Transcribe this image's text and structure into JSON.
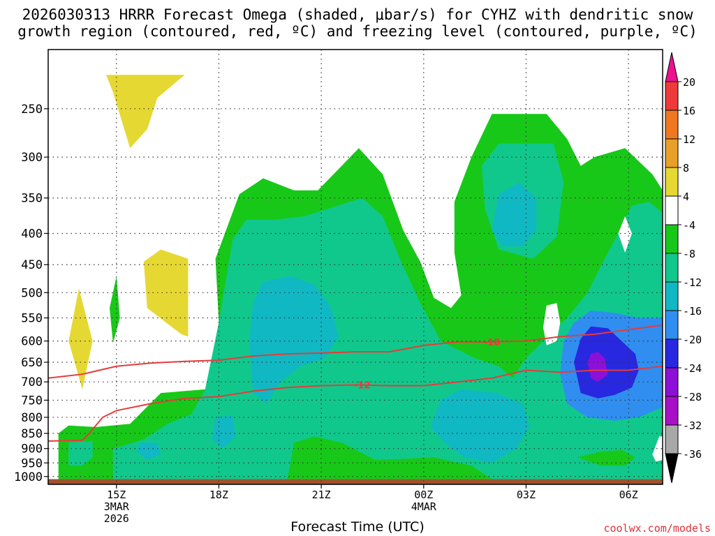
{
  "title_line1": "2026030313 HRRR Forecast Omega (shaded, μbar/s) for CYHZ with dendritic snow",
  "title_line2": "growth region (contoured, red, ºC) and freezing level (contoured, purple, ºC)",
  "credit": "coolwx.com/models",
  "chart_data": {
    "type": "heatmap",
    "xlabel": "Forecast Time (UTC)",
    "ylabel": "",
    "x_unit": "forecast hour from 2026-03-03 13Z",
    "xlim": [
      0,
      18
    ],
    "x_ticks": [
      {
        "x": 2,
        "label": "15Z",
        "sub1": "3MAR",
        "sub2": "2026"
      },
      {
        "x": 5,
        "label": "18Z",
        "sub1": "",
        "sub2": ""
      },
      {
        "x": 8,
        "label": "21Z",
        "sub1": "",
        "sub2": ""
      },
      {
        "x": 11,
        "label": "00Z",
        "sub1": "4MAR",
        "sub2": ""
      },
      {
        "x": 14,
        "label": "03Z",
        "sub1": "",
        "sub2": ""
      },
      {
        "x": 17,
        "label": "06Z",
        "sub1": "",
        "sub2": ""
      }
    ],
    "y_axis": "pressure (hPa), reversed, log scale",
    "ylim": [
      1030,
      200
    ],
    "y_ticks": [
      250,
      300,
      350,
      400,
      450,
      500,
      550,
      600,
      650,
      700,
      750,
      800,
      850,
      900,
      950,
      1000
    ],
    "grid": true,
    "colorbar": {
      "labels": [
        "20",
        "16",
        "12",
        "8",
        "4",
        "-4",
        "-8",
        "-12",
        "-16",
        "-20",
        "-24",
        "-28",
        "-32",
        "-36"
      ],
      "bands": [
        {
          "from": 20,
          "to": 24,
          "color": "#ee1090"
        },
        {
          "from": 16,
          "to": 20,
          "color": "#ee3a3a"
        },
        {
          "from": 12,
          "to": 16,
          "color": "#f07820"
        },
        {
          "from": 8,
          "to": 12,
          "color": "#e8a028"
        },
        {
          "from": 4,
          "to": 8,
          "color": "#e6d832"
        },
        {
          "from": -4,
          "to": 4,
          "color": "#ffffff"
        },
        {
          "from": -8,
          "to": -4,
          "color": "#18c818"
        },
        {
          "from": -12,
          "to": -8,
          "color": "#10c88c"
        },
        {
          "from": -16,
          "to": -12,
          "color": "#10b8c4"
        },
        {
          "from": -20,
          "to": -16,
          "color": "#2f8ef0"
        },
        {
          "from": -24,
          "to": -20,
          "color": "#2828e0"
        },
        {
          "from": -28,
          "to": -24,
          "color": "#8c10d8"
        },
        {
          "from": -32,
          "to": -28,
          "color": "#a810c8"
        },
        {
          "from": -36,
          "to": -32,
          "color": "#a8a8a8"
        },
        {
          "from": -40,
          "to": -36,
          "color": "#000000"
        }
      ]
    },
    "ground_color": "#a0522d",
    "contour_color": "#e83a3a",
    "shaded_regions": [
      {
        "name": "omega-pos-upper",
        "value": 6,
        "points": [
          [
            1.7,
            220
          ],
          [
            4.0,
            220
          ],
          [
            3.2,
            240
          ],
          [
            2.9,
            270
          ],
          [
            2.4,
            290
          ],
          [
            1.9,
            235
          ]
        ]
      },
      {
        "name": "omega-pos-mid",
        "value": 6,
        "points": [
          [
            2.8,
            445
          ],
          [
            3.3,
            425
          ],
          [
            4.1,
            440
          ],
          [
            4.1,
            590
          ],
          [
            3.9,
            585
          ],
          [
            2.9,
            530
          ]
        ]
      },
      {
        "name": "omega-pos-left",
        "value": 6,
        "points": [
          [
            0.6,
            600
          ],
          [
            0.9,
            492
          ],
          [
            1.3,
            600
          ],
          [
            1.0,
            720
          ]
        ]
      },
      {
        "name": "omega-neg-thin",
        "value": -6,
        "points": [
          [
            1.8,
            530
          ],
          [
            2.0,
            470
          ],
          [
            2.1,
            550
          ],
          [
            1.9,
            605
          ]
        ]
      },
      {
        "name": "omega-neg-main",
        "value": -6,
        "points": [
          [
            0.3,
            1010
          ],
          [
            0.3,
            850
          ],
          [
            0.6,
            825
          ],
          [
            1.4,
            830
          ],
          [
            2.4,
            820
          ],
          [
            3.3,
            730
          ],
          [
            4.6,
            720
          ],
          [
            5.0,
            560
          ],
          [
            4.9,
            440
          ],
          [
            5.6,
            345
          ],
          [
            6.3,
            325
          ],
          [
            7.2,
            340
          ],
          [
            7.9,
            340
          ],
          [
            8.6,
            310
          ],
          [
            9.1,
            290
          ],
          [
            9.8,
            320
          ],
          [
            10.4,
            395
          ],
          [
            10.9,
            445
          ],
          [
            11.3,
            510
          ],
          [
            11.8,
            530
          ],
          [
            12.1,
            505
          ],
          [
            11.9,
            430
          ],
          [
            11.9,
            355
          ],
          [
            12.4,
            300
          ],
          [
            13.0,
            255
          ],
          [
            14.6,
            255
          ],
          [
            15.2,
            280
          ],
          [
            15.6,
            310
          ],
          [
            16.0,
            300
          ],
          [
            16.9,
            290
          ],
          [
            17.7,
            320
          ],
          [
            18.0,
            340
          ],
          [
            18.0,
            1010
          ]
        ]
      },
      {
        "name": "omega-n12-main",
        "value": -10,
        "points": [
          [
            1.9,
            1010
          ],
          [
            1.9,
            900
          ],
          [
            2.8,
            870
          ],
          [
            3.5,
            820
          ],
          [
            4.2,
            790
          ],
          [
            4.6,
            720
          ],
          [
            5.0,
            560
          ],
          [
            5.4,
            410
          ],
          [
            5.8,
            380
          ],
          [
            6.6,
            380
          ],
          [
            7.5,
            375
          ],
          [
            8.5,
            360
          ],
          [
            9.2,
            350
          ],
          [
            9.8,
            375
          ],
          [
            10.3,
            440
          ],
          [
            10.9,
            520
          ],
          [
            11.5,
            600
          ],
          [
            12.5,
            640
          ],
          [
            13.2,
            660
          ],
          [
            13.6,
            690
          ],
          [
            14.0,
            640
          ],
          [
            14.7,
            585
          ],
          [
            15.2,
            550
          ],
          [
            15.8,
            500
          ],
          [
            16.3,
            440
          ],
          [
            16.8,
            390
          ],
          [
            17.1,
            360
          ],
          [
            17.6,
            355
          ],
          [
            18.0,
            370
          ],
          [
            18.0,
            1010
          ],
          [
            13.0,
            1010
          ],
          [
            12.4,
            960
          ],
          [
            11.3,
            930
          ],
          [
            9.6,
            940
          ],
          [
            8.6,
            880
          ],
          [
            7.8,
            860
          ],
          [
            7.2,
            880
          ],
          [
            7.1,
            950
          ],
          [
            7.0,
            1010
          ]
        ]
      },
      {
        "name": "omega-n12-left",
        "value": -10,
        "points": [
          [
            0.6,
            960
          ],
          [
            0.6,
            880
          ],
          [
            1.3,
            875
          ],
          [
            1.3,
            930
          ],
          [
            1.0,
            960
          ]
        ]
      },
      {
        "name": "omega-n12-upper",
        "value": -10,
        "points": [
          [
            12.8,
            365
          ],
          [
            12.7,
            310
          ],
          [
            13.2,
            285
          ],
          [
            14.8,
            285
          ],
          [
            15.1,
            330
          ],
          [
            14.9,
            405
          ],
          [
            14.2,
            440
          ],
          [
            13.2,
            425
          ]
        ]
      },
      {
        "name": "omega-n16-mid",
        "value": -14,
        "points": [
          [
            6.0,
            520
          ],
          [
            6.3,
            480
          ],
          [
            7.1,
            470
          ],
          [
            7.8,
            485
          ],
          [
            8.3,
            530
          ],
          [
            8.5,
            590
          ],
          [
            8.1,
            640
          ],
          [
            7.4,
            660
          ],
          [
            6.8,
            700
          ],
          [
            6.4,
            760
          ],
          [
            6.0,
            730
          ],
          [
            5.9,
            600
          ]
        ]
      },
      {
        "name": "omega-n16-upper",
        "value": -14,
        "points": [
          [
            13.0,
            395
          ],
          [
            13.2,
            345
          ],
          [
            13.8,
            330
          ],
          [
            14.3,
            350
          ],
          [
            14.3,
            395
          ],
          [
            13.9,
            420
          ],
          [
            13.3,
            420
          ]
        ]
      },
      {
        "name": "omega-n16-lower",
        "value": -14,
        "points": [
          [
            11.2,
            830
          ],
          [
            11.5,
            750
          ],
          [
            12.1,
            720
          ],
          [
            13.1,
            730
          ],
          [
            13.9,
            760
          ],
          [
            14.1,
            830
          ],
          [
            13.7,
            900
          ],
          [
            13.0,
            950
          ],
          [
            12.2,
            930
          ],
          [
            11.6,
            880
          ]
        ]
      },
      {
        "name": "omega-n16-small",
        "value": -14,
        "points": [
          [
            4.8,
            870
          ],
          [
            4.9,
            800
          ],
          [
            5.4,
            795
          ],
          [
            5.5,
            860
          ],
          [
            5.1,
            900
          ]
        ]
      },
      {
        "name": "omega-n16-left",
        "value": -14,
        "points": [
          [
            2.6,
            910
          ],
          [
            2.7,
            880
          ],
          [
            3.2,
            880
          ],
          [
            3.3,
            920
          ],
          [
            2.9,
            940
          ]
        ]
      },
      {
        "name": "omega-n20",
        "value": -18,
        "points": [
          [
            15.0,
            680
          ],
          [
            15.1,
            600
          ],
          [
            15.4,
            560
          ],
          [
            15.9,
            535
          ],
          [
            16.6,
            540
          ],
          [
            17.3,
            550
          ],
          [
            18.0,
            550
          ],
          [
            18.0,
            770
          ],
          [
            17.3,
            800
          ],
          [
            16.6,
            810
          ],
          [
            15.8,
            800
          ],
          [
            15.2,
            760
          ]
        ]
      },
      {
        "name": "omega-n24",
        "value": -22,
        "points": [
          [
            15.4,
            650
          ],
          [
            15.6,
            595
          ],
          [
            15.9,
            568
          ],
          [
            16.4,
            572
          ],
          [
            16.8,
            600
          ],
          [
            17.2,
            630
          ],
          [
            17.3,
            670
          ],
          [
            17.1,
            715
          ],
          [
            16.6,
            735
          ],
          [
            16.1,
            745
          ],
          [
            15.6,
            730
          ]
        ]
      },
      {
        "name": "omega-n28",
        "value": -26,
        "points": [
          [
            15.8,
            650
          ],
          [
            15.9,
            630
          ],
          [
            16.1,
            625
          ],
          [
            16.3,
            640
          ],
          [
            16.4,
            680
          ],
          [
            16.1,
            700
          ],
          [
            15.9,
            690
          ]
        ]
      },
      {
        "name": "omega-white-hole-upper",
        "value": 0,
        "points": [
          [
            16.7,
            400
          ],
          [
            16.9,
            375
          ],
          [
            17.1,
            400
          ],
          [
            16.9,
            430
          ]
        ]
      },
      {
        "name": "omega-white-hole-mid",
        "value": 0,
        "points": [
          [
            14.5,
            570
          ],
          [
            14.6,
            525
          ],
          [
            14.9,
            520
          ],
          [
            15.0,
            560
          ],
          [
            14.9,
            600
          ],
          [
            14.6,
            610
          ]
        ]
      },
      {
        "name": "omega-white-hole-low",
        "value": 0,
        "points": [
          [
            17.7,
            920
          ],
          [
            17.9,
            860
          ],
          [
            18.0,
            860
          ],
          [
            18.0,
            940
          ],
          [
            17.8,
            945
          ]
        ]
      },
      {
        "name": "omega-green-low",
        "value": -6,
        "points": [
          [
            15.5,
            930
          ],
          [
            16.2,
            910
          ],
          [
            16.8,
            905
          ],
          [
            17.2,
            930
          ],
          [
            16.9,
            960
          ],
          [
            16.2,
            960
          ]
        ]
      }
    ],
    "contours": [
      {
        "label": "-18",
        "label_x": 13.0,
        "points": [
          [
            0,
            690
          ],
          [
            1.0,
            680
          ],
          [
            2.0,
            660
          ],
          [
            3.0,
            652
          ],
          [
            4.0,
            648
          ],
          [
            5.0,
            645
          ],
          [
            6.0,
            635
          ],
          [
            7.0,
            630
          ],
          [
            8.0,
            628
          ],
          [
            9.0,
            625
          ],
          [
            10.0,
            625
          ],
          [
            11.0,
            610
          ],
          [
            12.0,
            602
          ],
          [
            13.0,
            602
          ],
          [
            14.0,
            600
          ],
          [
            15.0,
            590
          ],
          [
            16.0,
            585
          ],
          [
            17.0,
            575
          ],
          [
            18.0,
            565
          ]
        ]
      },
      {
        "label": "-12",
        "label_x": 9.2,
        "points": [
          [
            0,
            875
          ],
          [
            1.0,
            872
          ],
          [
            1.2,
            850
          ],
          [
            1.6,
            800
          ],
          [
            2.0,
            780
          ],
          [
            3.0,
            760
          ],
          [
            4.0,
            745
          ],
          [
            5.0,
            740
          ],
          [
            6.0,
            725
          ],
          [
            7.0,
            715
          ],
          [
            8.0,
            710
          ],
          [
            9.0,
            708
          ],
          [
            10.0,
            710
          ],
          [
            11.0,
            710
          ],
          [
            12.0,
            700
          ],
          [
            13.0,
            690
          ],
          [
            14.0,
            670
          ],
          [
            15.0,
            675
          ],
          [
            16.0,
            670
          ],
          [
            17.0,
            670
          ],
          [
            18.0,
            660
          ]
        ]
      }
    ]
  }
}
